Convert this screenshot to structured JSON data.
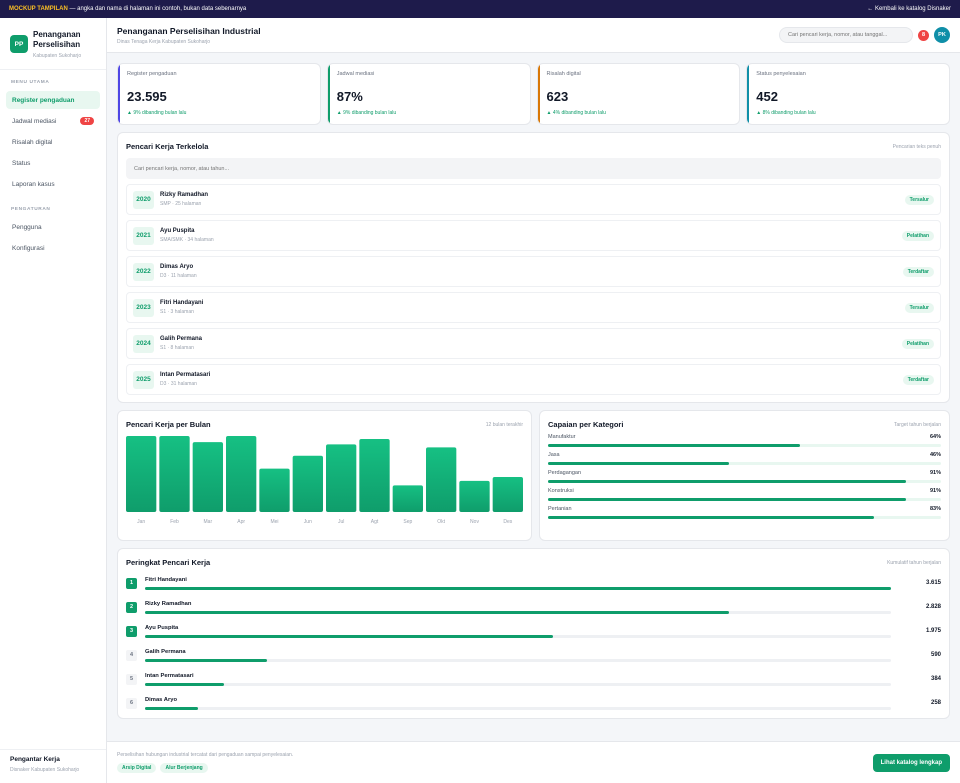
{
  "banner": {
    "tag": "MOCKUP TAMPILAN",
    "text": "— angka dan nama di halaman ini contoh, bukan data sebenarnya",
    "back_link": "← Kembali ke katalog Disnaker"
  },
  "sidebar": {
    "logo": "PP",
    "brand_line1": "Penanganan",
    "brand_line2": "Perselisihan",
    "brand_sub": "Kabupaten Sukoharjo",
    "section_main": "MENU UTAMA",
    "main_items": [
      {
        "label": "Register pengaduan",
        "active": true
      },
      {
        "label": "Jadwal mediasi",
        "badge": "27"
      },
      {
        "label": "Risalah digital"
      },
      {
        "label": "Status"
      },
      {
        "label": "Laporan kasus"
      }
    ],
    "section_settings": "PENGATURAN",
    "settings_items": [
      {
        "label": "Pengguna"
      },
      {
        "label": "Konfigurasi"
      }
    ],
    "footer_title": "Pengantar Kerja",
    "footer_sub": "Disnaker Kabupaten Sukoharjo"
  },
  "header": {
    "title": "Penanganan Perselisihan Industrial",
    "subtitle": "Dinas Tenaga Kerja Kabupaten Sukoharjo",
    "search_placeholder": "Cari pencari kerja, nomor, atau tanggal...",
    "notif_count": "8",
    "avatar": "PK"
  },
  "stats": [
    {
      "label": "Register pengaduan",
      "value": "23.595",
      "delta": "▲ 9% dibanding bulan lalu",
      "color": "#4f46e5"
    },
    {
      "label": "Jadwal mediasi",
      "value": "87%",
      "delta": "▲ 9% dibanding bulan lalu",
      "color": "#0f9d6b"
    },
    {
      "label": "Risalah digital",
      "value": "623",
      "delta": "▲ 4% dibanding bulan lalu",
      "color": "#d97706"
    },
    {
      "label": "Status penyelesaian",
      "value": "452",
      "delta": "▲ 8% dibanding bulan lalu",
      "color": "#0f8fa8"
    }
  ],
  "jobs": {
    "title": "Pencari Kerja Terkelola",
    "note": "Pencarian teks penuh",
    "search_placeholder": "Cari pencari kerja, nomor, atau tahun...",
    "rows": [
      {
        "year": "2020",
        "name": "Rizky Ramadhan",
        "meta": "SMP · 25 halaman",
        "status": "Tersalur"
      },
      {
        "year": "2021",
        "name": "Ayu Puspita",
        "meta": "SMA/SMK · 34 halaman",
        "status": "Pelatihan"
      },
      {
        "year": "2022",
        "name": "Dimas Aryo",
        "meta": "D3 · 11 halaman",
        "status": "Terdaftar"
      },
      {
        "year": "2023",
        "name": "Fitri Handayani",
        "meta": "S1 · 3 halaman",
        "status": "Tersalur"
      },
      {
        "year": "2024",
        "name": "Galih Permana",
        "meta": "S1 · 8 halaman",
        "status": "Pelatihan"
      },
      {
        "year": "2025",
        "name": "Intan Permatasari",
        "meta": "D3 · 31 halaman",
        "status": "Terdaftar"
      }
    ]
  },
  "monthly": {
    "title": "Pencari Kerja per Bulan",
    "note": "12 bulan terakhir"
  },
  "chart_data": {
    "type": "bar",
    "categories": [
      "Jan",
      "Feb",
      "Mar",
      "Apr",
      "Mei",
      "Jun",
      "Jul",
      "Agt",
      "Sep",
      "Okt",
      "Nov",
      "Des"
    ],
    "values": [
      100,
      100,
      92,
      100,
      57,
      74,
      89,
      96,
      35,
      85,
      41,
      46
    ],
    "ylim": [
      0,
      100
    ],
    "color": "#0f9d6b"
  },
  "category": {
    "title": "Capaian per Kategori",
    "note": "Target tahun berjalan",
    "items": [
      {
        "name": "Manufaktur",
        "value": "64%",
        "pct": 64
      },
      {
        "name": "Jasa",
        "value": "46%",
        "pct": 46
      },
      {
        "name": "Perdagangan",
        "value": "91%",
        "pct": 91
      },
      {
        "name": "Konstruksi",
        "value": "91%",
        "pct": 91
      },
      {
        "name": "Pertanian",
        "value": "83%",
        "pct": 83
      }
    ]
  },
  "ranking": {
    "title": "Peringkat Pencari Kerja",
    "note": "Kumulatif tahun berjalan",
    "rows": [
      {
        "rank": "1",
        "name": "Fitri Handayani",
        "value": "3.615",
        "num": 3615
      },
      {
        "rank": "2",
        "name": "Rizky Ramadhan",
        "value": "2.828",
        "num": 2828
      },
      {
        "rank": "3",
        "name": "Ayu Puspita",
        "value": "1.975",
        "num": 1975
      },
      {
        "rank": "4",
        "name": "Galih Permana",
        "value": "590",
        "num": 590
      },
      {
        "rank": "5",
        "name": "Intan Permatasari",
        "value": "384",
        "num": 384
      },
      {
        "rank": "6",
        "name": "Dimas Aryo",
        "value": "258",
        "num": 258
      }
    ]
  },
  "footer": {
    "text": "Perselisihan hubungan industrial tercatat dari pengaduan sampai penyelesaian.",
    "chips": [
      "Arsip Digital",
      "Alur Berjenjang"
    ],
    "cta": "Lihat katalog lengkap"
  }
}
